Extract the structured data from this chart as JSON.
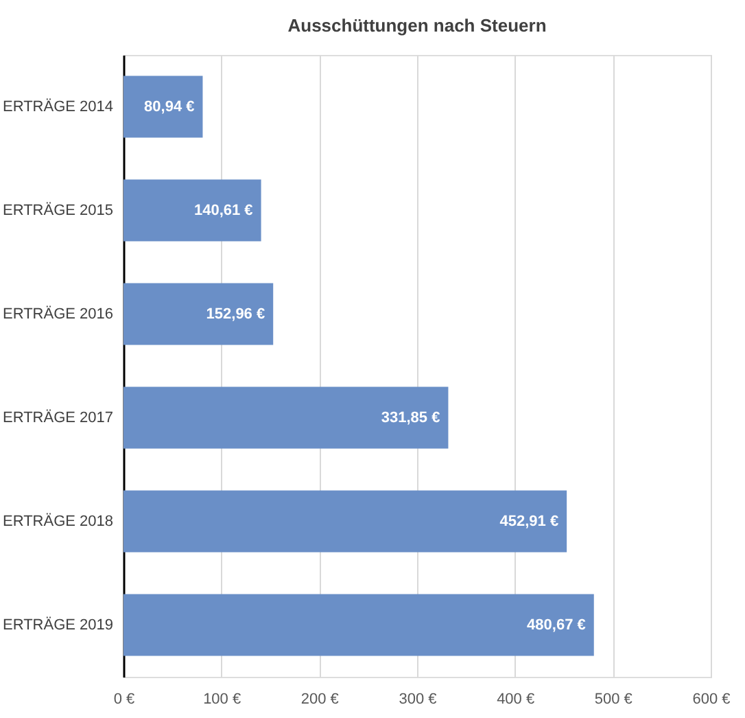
{
  "chart_data": {
    "type": "bar",
    "orientation": "horizontal",
    "title": "Ausschüttungen nach Steuern",
    "categories": [
      "ERTRÄGE 2014",
      "ERTRÄGE 2015",
      "ERTRÄGE 2016",
      "ERTRÄGE 2017",
      "ERTRÄGE 2018",
      "ERTRÄGE 2019"
    ],
    "values": [
      80.94,
      140.61,
      152.96,
      331.85,
      452.91,
      480.67
    ],
    "value_labels": [
      "80,94 €",
      "140,61 €",
      "152,96 €",
      "331,85 €",
      "452,91 €",
      "480,67 €"
    ],
    "color": "#6a8fc7",
    "xlim": [
      0,
      600
    ],
    "xticks": [
      {
        "value": 0,
        "label": "0 €"
      },
      {
        "value": 100,
        "label": "100 €"
      },
      {
        "value": 200,
        "label": "200 €"
      },
      {
        "value": 300,
        "label": "300 €"
      },
      {
        "value": 400,
        "label": "400 €"
      },
      {
        "value": 500,
        "label": "500 €"
      },
      {
        "value": 600,
        "label": "600 €"
      }
    ],
    "grid": "x"
  }
}
